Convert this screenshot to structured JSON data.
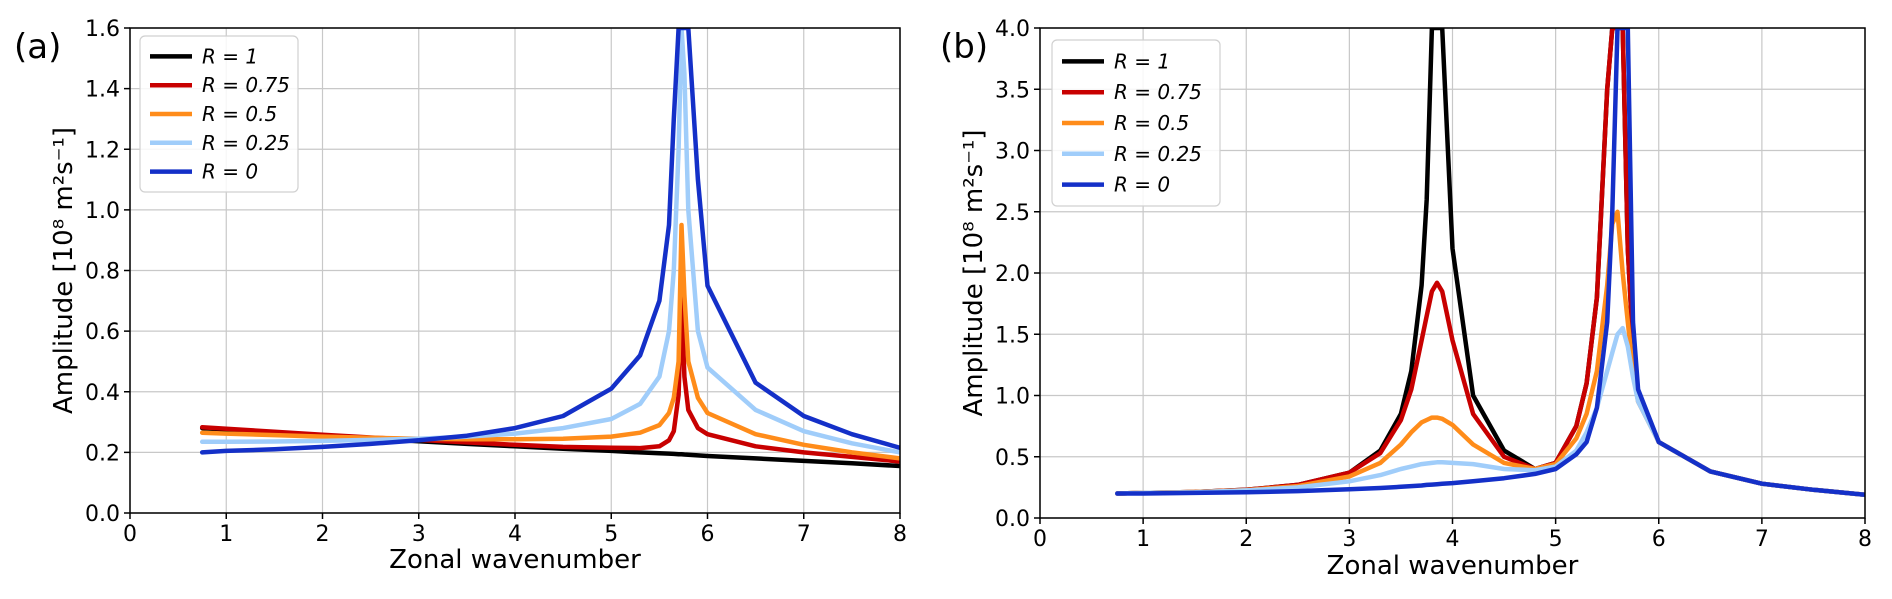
{
  "chart_data": [
    {
      "type": "line",
      "panel_label": "(a)",
      "xlabel": "Zonal wavenumber",
      "ylabel": "Amplitude [10⁸ m²s⁻¹]",
      "xlim": [
        0,
        8
      ],
      "ylim": [
        0,
        1.6
      ],
      "xticks": [
        "0",
        "1",
        "2",
        "3",
        "4",
        "5",
        "6",
        "7",
        "8"
      ],
      "yticks": [
        "0.0",
        "0.2",
        "0.4",
        "0.6",
        "0.8",
        "1.0",
        "1.2",
        "1.4",
        "1.6"
      ],
      "grid": true,
      "legend_position": "top-left",
      "x": [
        0.75,
        1,
        1.5,
        2,
        2.5,
        3,
        3.5,
        4,
        4.5,
        5,
        5.3,
        5.5,
        5.6,
        5.65,
        5.7,
        5.73,
        5.76,
        5.8,
        5.9,
        6,
        6.5,
        7,
        7.5,
        8
      ],
      "series": [
        {
          "name": "R = 1",
          "color": "#000000",
          "values": [
            0.28,
            0.275,
            0.265,
            0.255,
            0.245,
            0.237,
            0.228,
            0.22,
            0.212,
            0.205,
            0.2,
            0.197,
            0.196,
            0.195,
            0.194,
            0.194,
            0.193,
            0.192,
            0.19,
            0.188,
            0.18,
            0.172,
            0.164,
            0.155
          ]
        },
        {
          "name": "R = 0.75",
          "color": "#c80000",
          "values": [
            0.283,
            0.278,
            0.268,
            0.258,
            0.249,
            0.241,
            0.233,
            0.225,
            0.218,
            0.215,
            0.214,
            0.22,
            0.24,
            0.27,
            0.39,
            0.72,
            0.45,
            0.34,
            0.28,
            0.26,
            0.22,
            0.2,
            0.185,
            0.17
          ]
        },
        {
          "name": "R = 0.5",
          "color": "#ff8c1a",
          "values": [
            0.265,
            0.262,
            0.257,
            0.252,
            0.248,
            0.245,
            0.243,
            0.243,
            0.245,
            0.252,
            0.265,
            0.29,
            0.33,
            0.38,
            0.5,
            0.95,
            0.72,
            0.5,
            0.38,
            0.33,
            0.26,
            0.225,
            0.2,
            0.18
          ]
        },
        {
          "name": "R = 0.25",
          "color": "#a0cdfa",
          "values": [
            0.235,
            0.235,
            0.236,
            0.238,
            0.241,
            0.245,
            0.252,
            0.262,
            0.28,
            0.31,
            0.36,
            0.45,
            0.6,
            0.8,
            1.2,
            1.6,
            1.45,
            1.0,
            0.6,
            0.48,
            0.34,
            0.27,
            0.23,
            0.2
          ]
        },
        {
          "name": "R = 0",
          "color": "#1430c8",
          "values": [
            0.2,
            0.205,
            0.21,
            0.218,
            0.228,
            0.24,
            0.255,
            0.28,
            0.32,
            0.41,
            0.52,
            0.7,
            0.95,
            1.3,
            1.6,
            1.6,
            1.6,
            1.6,
            1.1,
            0.75,
            0.43,
            0.32,
            0.26,
            0.215
          ]
        }
      ]
    },
    {
      "type": "line",
      "panel_label": "(b)",
      "xlabel": "Zonal wavenumber",
      "ylabel": "Amplitude [10⁸ m²s⁻¹]",
      "xlim": [
        0,
        8
      ],
      "ylim": [
        0,
        4.0
      ],
      "xticks": [
        "0",
        "1",
        "2",
        "3",
        "4",
        "5",
        "6",
        "7",
        "8"
      ],
      "yticks": [
        "0.0",
        "0.5",
        "1.0",
        "1.5",
        "2.0",
        "2.5",
        "3.0",
        "3.5",
        "4.0"
      ],
      "grid": true,
      "legend_position": "top-left",
      "x": [
        0.75,
        1,
        1.5,
        2,
        2.5,
        3,
        3.3,
        3.5,
        3.6,
        3.7,
        3.75,
        3.8,
        3.85,
        3.9,
        4,
        4.2,
        4.5,
        4.8,
        5,
        5.2,
        5.3,
        5.4,
        5.5,
        5.55,
        5.6,
        5.65,
        5.7,
        5.75,
        5.8,
        6,
        6.5,
        7,
        7.5,
        8
      ],
      "series": [
        {
          "name": "R = 1",
          "color": "#000000",
          "values": [
            0.2,
            0.205,
            0.212,
            0.23,
            0.27,
            0.37,
            0.55,
            0.85,
            1.2,
            1.9,
            2.6,
            4.0,
            4.0,
            4.0,
            2.2,
            1.0,
            0.55,
            0.4,
            0.45,
            0.75,
            1.1,
            1.8,
            3.5,
            4.0,
            4.0,
            4.0,
            2.2,
            1.4,
            1.0,
            0.62,
            0.38,
            0.28,
            0.23,
            0.19
          ]
        },
        {
          "name": "R = 0.75",
          "color": "#c80000",
          "values": [
            0.2,
            0.205,
            0.212,
            0.23,
            0.27,
            0.37,
            0.53,
            0.8,
            1.05,
            1.45,
            1.65,
            1.85,
            1.92,
            1.85,
            1.45,
            0.85,
            0.5,
            0.4,
            0.45,
            0.75,
            1.1,
            1.8,
            3.5,
            4.0,
            4.0,
            4.0,
            2.2,
            1.4,
            1.0,
            0.62,
            0.38,
            0.28,
            0.23,
            0.19
          ]
        },
        {
          "name": "R = 0.5",
          "color": "#ff8c1a",
          "values": [
            0.2,
            0.205,
            0.212,
            0.228,
            0.26,
            0.34,
            0.45,
            0.6,
            0.7,
            0.78,
            0.8,
            0.82,
            0.82,
            0.81,
            0.76,
            0.6,
            0.45,
            0.4,
            0.44,
            0.65,
            0.85,
            1.2,
            1.9,
            2.4,
            2.5,
            2.0,
            1.6,
            1.2,
            0.95,
            0.62,
            0.38,
            0.28,
            0.23,
            0.19
          ]
        },
        {
          "name": "R = 0.25",
          "color": "#a0cdfa",
          "values": [
            0.2,
            0.205,
            0.21,
            0.225,
            0.25,
            0.3,
            0.35,
            0.4,
            0.42,
            0.44,
            0.445,
            0.45,
            0.455,
            0.455,
            0.45,
            0.44,
            0.4,
            0.39,
            0.42,
            0.55,
            0.7,
            0.9,
            1.2,
            1.35,
            1.5,
            1.55,
            1.4,
            1.15,
            0.95,
            0.62,
            0.38,
            0.28,
            0.23,
            0.19
          ]
        },
        {
          "name": "R = 0",
          "color": "#1430c8",
          "values": [
            0.2,
            0.2,
            0.205,
            0.21,
            0.22,
            0.235,
            0.245,
            0.255,
            0.26,
            0.265,
            0.27,
            0.273,
            0.276,
            0.28,
            0.285,
            0.3,
            0.325,
            0.36,
            0.4,
            0.52,
            0.62,
            0.9,
            1.6,
            2.5,
            4.0,
            4.0,
            4.0,
            1.6,
            1.05,
            0.62,
            0.38,
            0.28,
            0.23,
            0.19
          ]
        }
      ]
    }
  ]
}
